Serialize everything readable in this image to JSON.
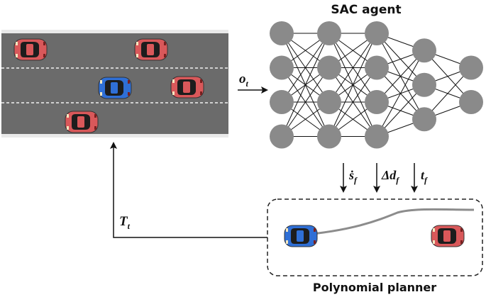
{
  "agent": {
    "title": "SAC agent",
    "layers": [
      4,
      4,
      4,
      3,
      2
    ]
  },
  "planner": {
    "title": "Polynomial planner"
  },
  "labels": {
    "observation": "o",
    "observation_sub": "t",
    "trajectory": "T",
    "trajectory_sub": "t",
    "speed": "ṡ",
    "speed_sub": "f",
    "lateral_delta": "Δd",
    "lateral_delta_sub": "f",
    "time": "t",
    "time_sub": "f"
  },
  "colors": {
    "road": "#6b6b6b",
    "lane_line": "#f2f2f2",
    "ego_car": "#2f6fd6",
    "other_car": "#d9585a",
    "node": "#8a8a8a",
    "edge": "#111111",
    "path": "#8c8c8c"
  },
  "icons": {
    "car": "car-top-view-icon"
  }
}
